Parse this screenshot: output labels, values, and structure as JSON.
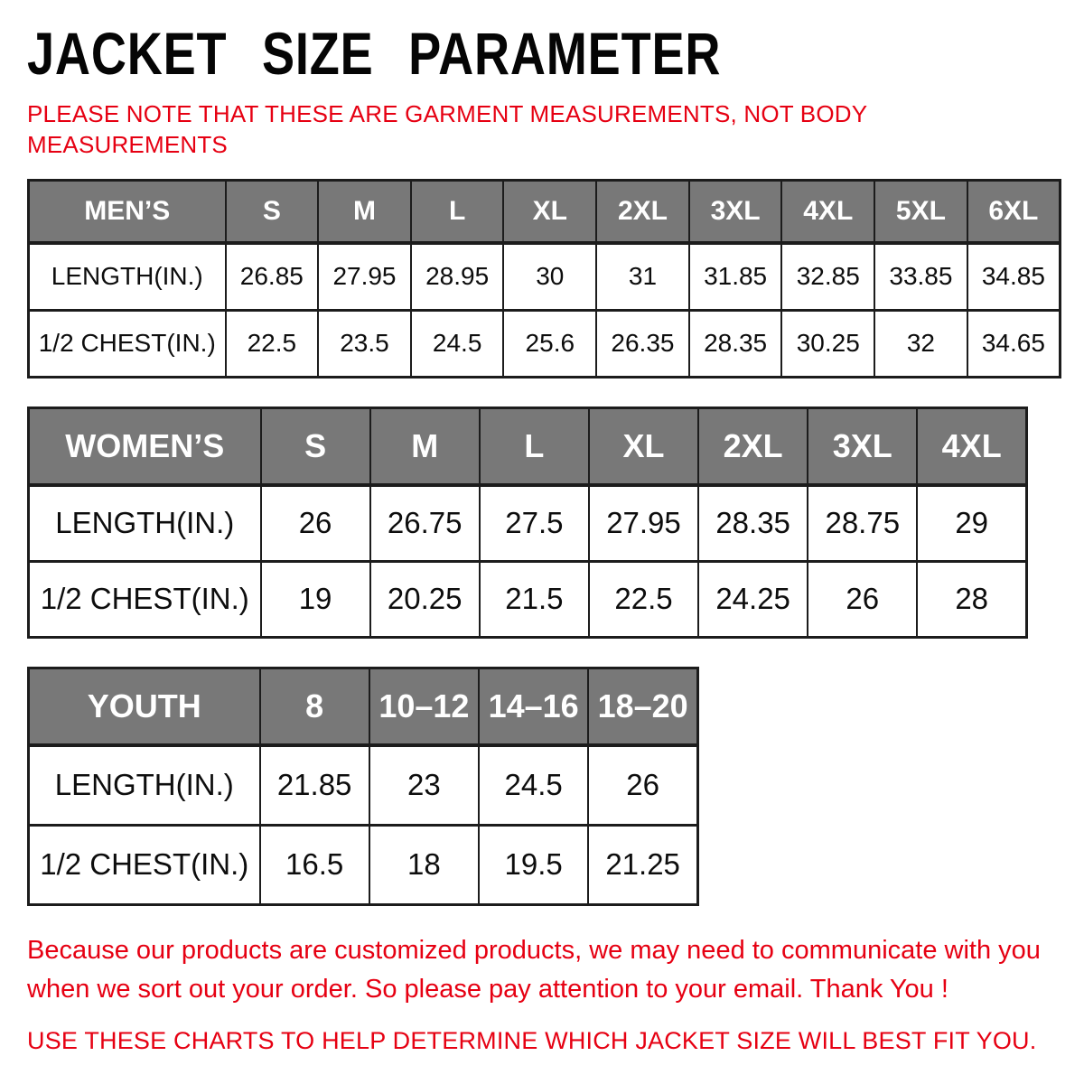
{
  "header": {
    "title": "JACKET SIZE PARAMETER",
    "note": "PLEASE NOTE THAT THESE ARE GARMENT MEASUREMENTS, NOT BODY MEASUREMENTS"
  },
  "colors": {
    "accent_red": "#e60012",
    "header_gray": "#787878",
    "border_dark": "#1c1c1c",
    "text_black": "#0d0d0d"
  },
  "tables": [
    {
      "id": "mens",
      "header": [
        "MEN’S",
        "S",
        "M",
        "L",
        "XL",
        "2XL",
        "3XL",
        "4XL",
        "5XL",
        "6XL"
      ],
      "rows": [
        {
          "label": "LENGTH(IN.)",
          "values": [
            "26.85",
            "27.95",
            "28.95",
            "30",
            "31",
            "31.85",
            "32.85",
            "33.85",
            "34.85"
          ]
        },
        {
          "label": "1/2 CHEST(IN.)",
          "values": [
            "22.5",
            "23.5",
            "24.5",
            "25.6",
            "26.35",
            "28.35",
            "30.25",
            "32",
            "34.65"
          ]
        }
      ]
    },
    {
      "id": "womens",
      "header": [
        "WOMEN’S",
        "S",
        "M",
        "L",
        "XL",
        "2XL",
        "3XL",
        "4XL"
      ],
      "rows": [
        {
          "label": "LENGTH(IN.)",
          "values": [
            "26",
            "26.75",
            "27.5",
            "27.95",
            "28.35",
            "28.75",
            "29"
          ]
        },
        {
          "label": "1/2 CHEST(IN.)",
          "values": [
            "19",
            "20.25",
            "21.5",
            "22.5",
            "24.25",
            "26",
            "28"
          ]
        }
      ]
    },
    {
      "id": "youth",
      "header": [
        "YOUTH",
        "8",
        "10–12",
        "14–16",
        "18–20"
      ],
      "rows": [
        {
          "label": "LENGTH(IN.)",
          "values": [
            "21.85",
            "23",
            "24.5",
            "26"
          ]
        },
        {
          "label": "1/2 CHEST(IN.)",
          "values": [
            "16.5",
            "18",
            "19.5",
            "21.25"
          ]
        }
      ]
    }
  ],
  "footer": {
    "paragraph": "Because our products are customized products, we may need to communicate with you when we sort out your order. So please pay attention to your email. Thank You !",
    "advice": "USE THESE CHARTS TO HELP DETERMINE WHICH JACKET SIZE WILL BEST FIT YOU."
  }
}
